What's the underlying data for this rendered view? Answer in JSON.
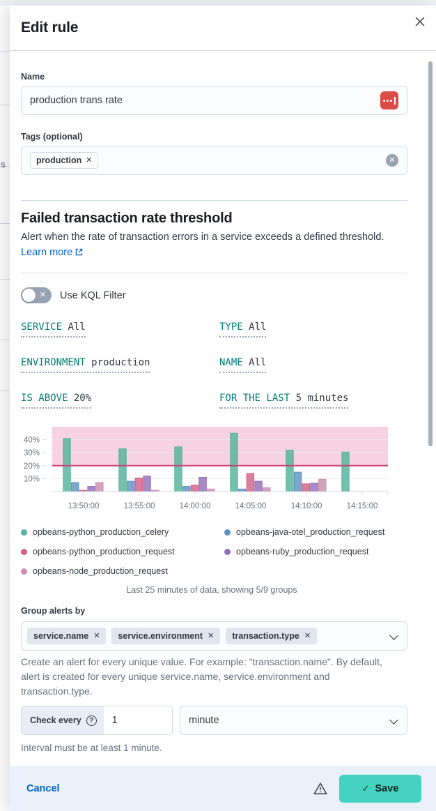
{
  "flyout": {
    "title": "Edit rule"
  },
  "underlying_page": {
    "partial_text": "s"
  },
  "name_field": {
    "label": "Name",
    "value": "production trans rate"
  },
  "tags_field": {
    "label": "Tags (optional)",
    "tags": [
      {
        "label": "production"
      }
    ]
  },
  "rule_type": {
    "heading": "Failed transaction rate threshold",
    "description": "Alert when the rate of transaction errors in a service exceeds a defined threshold.",
    "learn_more": "Learn more"
  },
  "kql_toggle": {
    "label": "Use KQL Filter",
    "state": "off"
  },
  "expressions": [
    {
      "label": "SERVICE",
      "value": "All"
    },
    {
      "label": "TYPE",
      "value": "All"
    },
    {
      "label": "ENVIRONMENT",
      "value": "production"
    },
    {
      "label": "NAME",
      "value": "All"
    },
    {
      "label": "IS ABOVE",
      "value": "20%"
    },
    {
      "label": "FOR THE LAST",
      "value": "5 minutes"
    }
  ],
  "chart_data": {
    "type": "bar",
    "categories": [
      "13:50:00",
      "13:55:00",
      "14:00:00",
      "14:05:00",
      "14:10:00",
      "14:15:00"
    ],
    "series": [
      {
        "name": "opbeans-python_production_celery",
        "color": "#54B399",
        "values": [
          41,
          33,
          34.5,
          45,
          32,
          30.5
        ]
      },
      {
        "name": "opbeans-java-otel_production_request",
        "color": "#6092C0",
        "values": [
          7,
          8,
          4,
          2,
          15,
          0
        ]
      },
      {
        "name": "opbeans-python_production_request",
        "color": "#D36086",
        "values": [
          1,
          10.5,
          5,
          14,
          6,
          0
        ]
      },
      {
        "name": "opbeans-ruby_production_request",
        "color": "#9170B8",
        "values": [
          4,
          12,
          11,
          8,
          6.5,
          0
        ]
      },
      {
        "name": "opbeans-node_production_request",
        "color": "#CA8EAE",
        "values": [
          7,
          1,
          2,
          3,
          9.5,
          0
        ]
      }
    ],
    "ylabel_ticks": [
      "10%",
      "20%",
      "30%",
      "40%"
    ],
    "ylim": [
      0,
      50
    ],
    "threshold": {
      "value": 20,
      "line_color": "#c84379",
      "band_color": "rgba(222,83,142,0.26)"
    },
    "grid": true,
    "legend_position": "bottom"
  },
  "chart_caption": "Last 25 minutes of data, showing 5/9 groups",
  "group_by": {
    "label": "Group alerts by",
    "selected": [
      "service.name",
      "service.environment",
      "transaction.type"
    ],
    "help": "Create an alert for every unique value. For example: \"transaction.name\". By default, alert is created for every unique service.name, service.environment and transaction.type."
  },
  "schedule": {
    "prefix": "Check every",
    "value": "1",
    "unit": "minute",
    "hint": "Interval must be at least 1 minute."
  },
  "footer": {
    "cancel": "Cancel",
    "save": "Save"
  }
}
